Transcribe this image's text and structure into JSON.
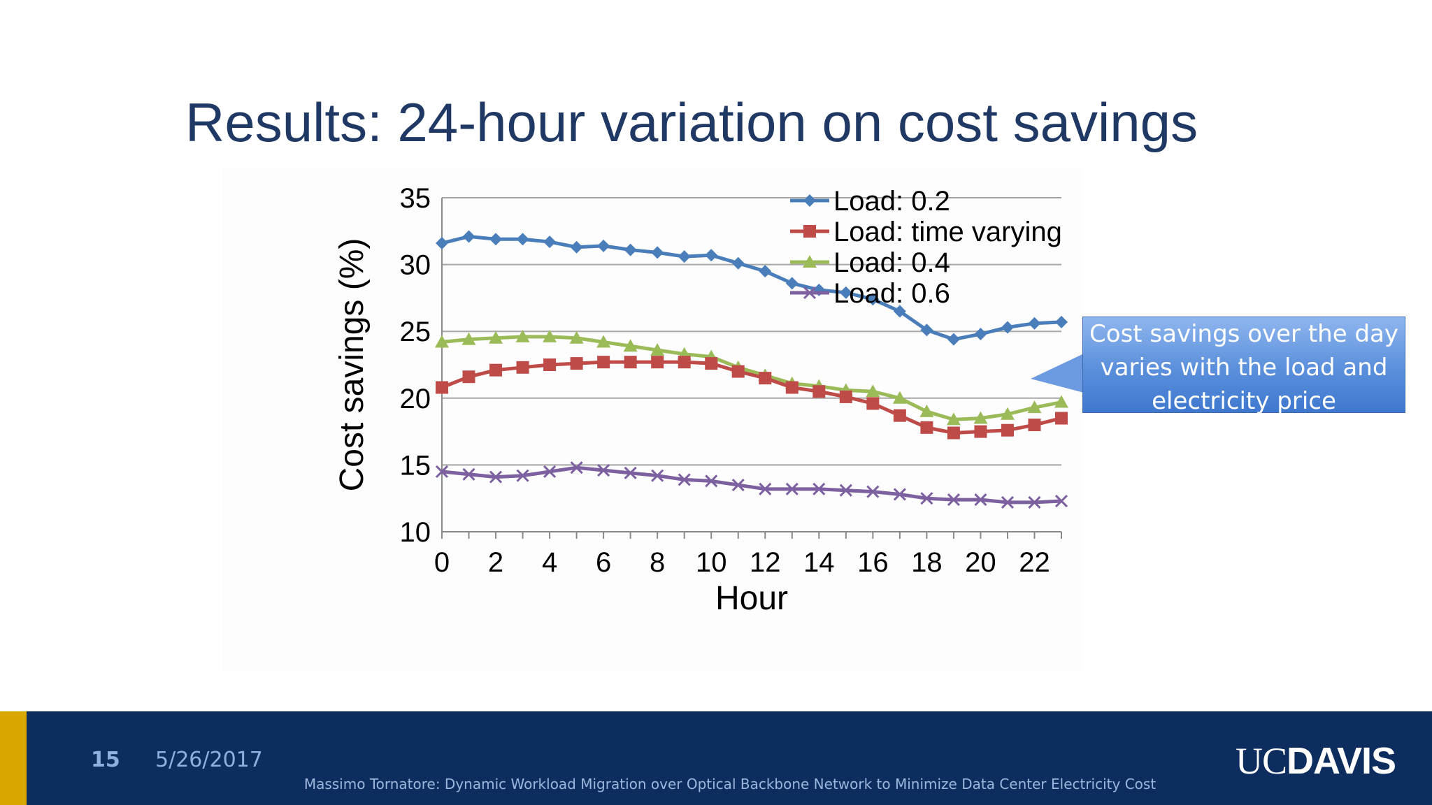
{
  "slide": {
    "title": "Results: 24-hour variation on cost savings",
    "callout_lines": [
      "Cost savings over the day",
      "varies with the load and",
      "electricity price"
    ]
  },
  "footer": {
    "slide_number": "15",
    "date": "5/26/2017",
    "caption": "Massimo Tornatore: Dynamic Workload Migration over Optical Backbone Network to Minimize Data Center Electricity Cost",
    "logo_uc": "UC",
    "logo_davis": "DAVIS",
    "colors": {
      "background": "#0d2d5e",
      "accent": "#d9a800"
    }
  },
  "chart_data": {
    "type": "line",
    "xlabel": "Hour",
    "ylabel": "Cost savings (%)",
    "xlim": [
      0,
      23
    ],
    "ylim": [
      10,
      35
    ],
    "xticks": [
      0,
      2,
      4,
      6,
      8,
      10,
      12,
      14,
      16,
      18,
      20,
      22
    ],
    "yticks": [
      10,
      15,
      20,
      25,
      30,
      35
    ],
    "grid": "horizontal",
    "legend_position": "top-right",
    "x": [
      0,
      1,
      2,
      3,
      4,
      5,
      6,
      7,
      8,
      9,
      10,
      11,
      12,
      13,
      14,
      15,
      16,
      17,
      18,
      19,
      20,
      21,
      22,
      23
    ],
    "series": [
      {
        "name": "Load: 0.2",
        "color": "#4a7ebb",
        "marker": "diamond",
        "values": [
          31.6,
          32.1,
          31.9,
          31.9,
          31.7,
          31.3,
          31.4,
          31.1,
          30.9,
          30.6,
          30.7,
          30.1,
          29.5,
          28.6,
          28.1,
          27.9,
          27.4,
          26.5,
          25.1,
          24.4,
          24.8,
          25.3,
          25.6,
          25.7
        ]
      },
      {
        "name": "Load: time varying",
        "color": "#be4b48",
        "marker": "square",
        "values": [
          20.8,
          21.6,
          22.1,
          22.3,
          22.5,
          22.6,
          22.7,
          22.7,
          22.7,
          22.7,
          22.6,
          22.0,
          21.5,
          20.8,
          20.5,
          20.1,
          19.6,
          18.7,
          17.8,
          17.4,
          17.5,
          17.6,
          18.0,
          18.5
        ]
      },
      {
        "name": "Load: 0.4",
        "color": "#9bbb59",
        "marker": "triangle",
        "values": [
          24.2,
          24.4,
          24.5,
          24.6,
          24.6,
          24.5,
          24.2,
          23.9,
          23.6,
          23.3,
          23.1,
          22.3,
          21.7,
          21.1,
          20.9,
          20.6,
          20.5,
          20.0,
          19.0,
          18.4,
          18.5,
          18.8,
          19.3,
          19.7
        ]
      },
      {
        "name": "Load: 0.6",
        "color": "#7d60a0",
        "marker": "x",
        "values": [
          14.5,
          14.3,
          14.1,
          14.2,
          14.5,
          14.8,
          14.6,
          14.4,
          14.2,
          13.9,
          13.8,
          13.5,
          13.2,
          13.2,
          13.2,
          13.1,
          13.0,
          12.8,
          12.5,
          12.4,
          12.4,
          12.2,
          12.2,
          12.3
        ]
      }
    ]
  }
}
